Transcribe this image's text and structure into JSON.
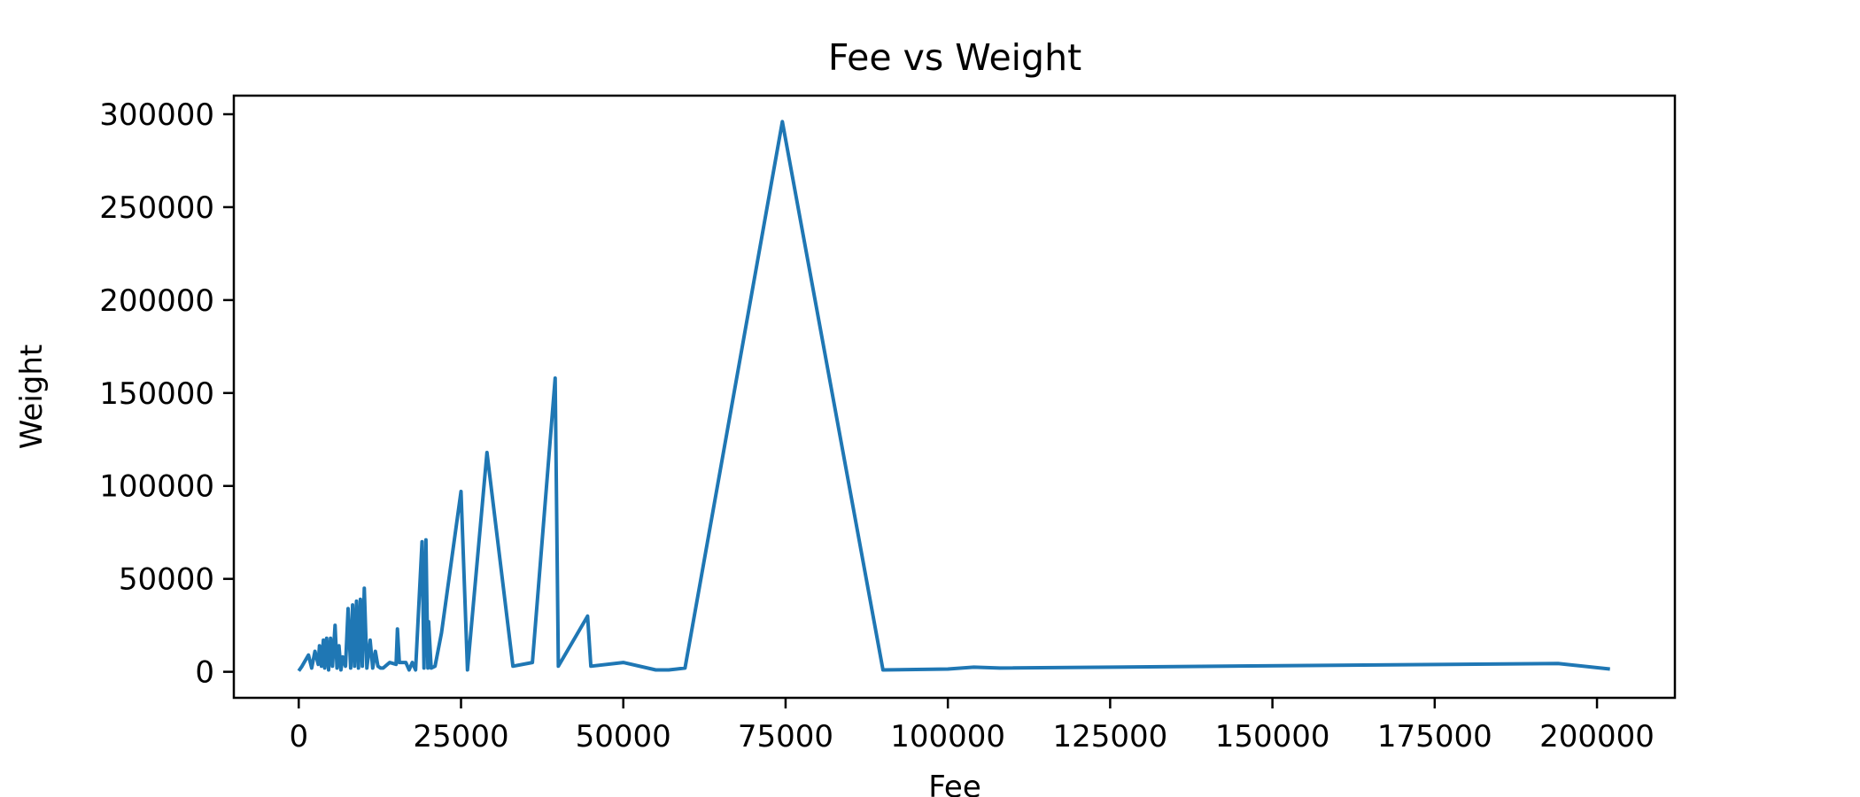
{
  "chart_data": {
    "type": "line",
    "title": "Fee vs Weight",
    "xlabel": "Fee",
    "ylabel": "Weight",
    "xlim": [
      -10000,
      212000
    ],
    "ylim": [
      -14000,
      310000
    ],
    "xticks": [
      0,
      25000,
      50000,
      75000,
      100000,
      125000,
      150000,
      175000,
      200000
    ],
    "yticks": [
      0,
      50000,
      100000,
      150000,
      200000,
      250000,
      300000
    ],
    "grid": false,
    "legend": "none",
    "line_color": "#1f77b4",
    "series": [
      {
        "x": [
          0,
          500,
          1000,
          1500,
          2000,
          2500,
          3000,
          3200,
          3500,
          3800,
          4000,
          4300,
          4600,
          4900,
          5200,
          5600,
          5900,
          6200,
          6500,
          6800,
          7200,
          7600,
          8000,
          8300,
          8600,
          8900,
          9200,
          9500,
          9800,
          10100,
          10500,
          11000,
          11400,
          11800,
          12200,
          12600,
          13000,
          14000,
          15000,
          15200,
          15500,
          16500,
          17000,
          17500,
          18000,
          19000,
          19300,
          19600,
          19900,
          20000,
          20400,
          21000,
          22000,
          25000,
          26000,
          29000,
          33000,
          36000,
          39500,
          40000,
          44500,
          45000,
          50000,
          55000,
          57000,
          59500,
          74500,
          90000,
          100000,
          104000,
          108000,
          194000,
          202000
        ],
        "y": [
          500,
          3000,
          6000,
          9000,
          2000,
          11000,
          4000,
          14000,
          3000,
          17000,
          2000,
          18000,
          1000,
          18000,
          3000,
          25000,
          2000,
          14000,
          1000,
          8000,
          3000,
          34000,
          2000,
          36000,
          3000,
          38000,
          2000,
          39000,
          3000,
          45000,
          2000,
          17000,
          2000,
          11000,
          3000,
          2000,
          2000,
          5000,
          4000,
          23000,
          5000,
          5000,
          1000,
          5000,
          1000,
          70000,
          2000,
          71000,
          2000,
          27000,
          2000,
          3000,
          21000,
          97000,
          1000,
          118000,
          3000,
          5000,
          158000,
          3000,
          30000,
          3000,
          5000,
          1000,
          1000,
          2000,
          296000,
          1000,
          1500,
          2500,
          2000,
          4500,
          1500
        ]
      }
    ]
  }
}
